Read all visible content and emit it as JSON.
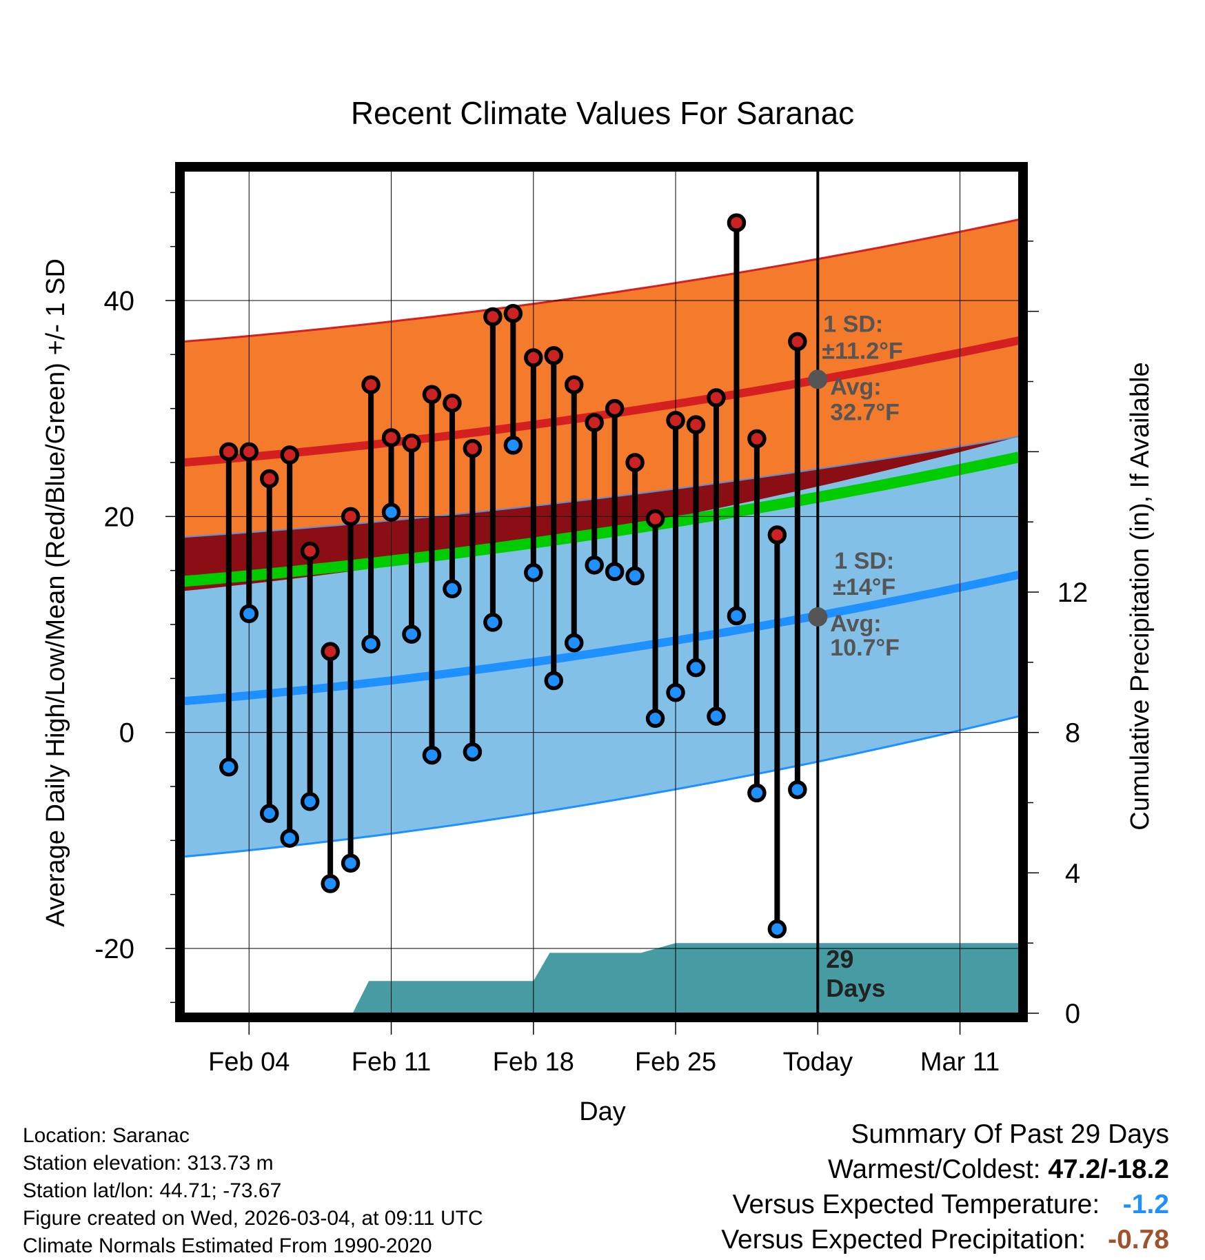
{
  "chart_data": {
    "type": "line",
    "title": "Recent Climate Values For Saranac",
    "xlabel": "Day",
    "ylabel": "Average Daily High/Low/Mean (Red/Blue/Green) +/- 1 SD",
    "ylabel_right": "Cumulative Precipitation (in), If Available",
    "ylim": [
      -26,
      52
    ],
    "y_ticks": [
      -20,
      0,
      20,
      40
    ],
    "y_tick_labels": [
      "-20",
      "0",
      "20",
      "40"
    ],
    "y2lim": [
      0,
      24
    ],
    "y2_ticks": [
      0,
      4,
      8,
      12
    ],
    "y2_tick_labels": [
      "0",
      "4",
      "8",
      "12"
    ],
    "x_range_days": [
      0.3,
      41.4
    ],
    "x_ticks": [
      3.5,
      10.5,
      17.5,
      24.5,
      31.5,
      38.5
    ],
    "x_tick_labels": [
      "Feb 04",
      "Feb 11",
      "Feb 18",
      "Feb 25",
      "Today",
      "Mar 11"
    ],
    "today_day": 31.5,
    "today_line_label": "29 Days",
    "daily_highs": [
      26.0,
      26.0,
      23.5,
      25.7,
      16.8,
      7.5,
      20.0,
      32.2,
      27.3,
      26.8,
      31.3,
      30.5,
      26.3,
      38.5,
      38.8,
      34.7,
      34.9,
      32.2,
      28.7,
      30.0,
      25.0,
      19.8,
      28.9,
      28.5,
      31.0,
      47.2,
      27.2,
      18.3,
      36.2
    ],
    "daily_lows": [
      -3.2,
      11.0,
      -7.5,
      -9.8,
      -6.4,
      -14.0,
      -12.1,
      8.2,
      20.4,
      9.1,
      -2.1,
      13.3,
      -1.8,
      10.2,
      26.6,
      14.8,
      4.8,
      8.3,
      15.5,
      14.9,
      14.5,
      1.3,
      3.7,
      6.0,
      1.5,
      10.8,
      -5.6,
      -18.2,
      -5.3
    ],
    "series": [
      {
        "name": "Normal High",
        "color": "#d42020",
        "start": 25.0,
        "end": 36.3
      },
      {
        "name": "Normal High +1 SD",
        "color": "#d42020",
        "start": 36.2,
        "end": 47.5
      },
      {
        "name": "Normal High -1 SD",
        "color": "#5b8fd9",
        "start": 18.1,
        "end": 27.4
      },
      {
        "name": "Normal Mean",
        "color": "#00cc00",
        "start": 14.0,
        "end": 25.5
      },
      {
        "name": "Normal Low",
        "color": "#1e90ff",
        "start": 2.9,
        "end": 14.6
      },
      {
        "name": "Normal Low -1 SD",
        "color": "#1e90ff",
        "start": -11.5,
        "end": 1.5
      }
    ],
    "precip_steps": [
      {
        "from": 0.3,
        "to": 8.6,
        "value": 0
      },
      {
        "from": 9.4,
        "to": 17.5,
        "value": 0.92
      },
      {
        "from": 18.3,
        "to": 22.8,
        "value": 1.72
      },
      {
        "from": 24.5,
        "to": 41.4,
        "value": 2.0
      }
    ],
    "colors": {
      "high_band": "#f47a2c",
      "low_band": "#82c0e8",
      "overlap_band": "#8b0e14",
      "precip": "#469ca2",
      "high_marker": "#cc2222",
      "low_marker": "#1e90ff",
      "annotation": "#555555"
    },
    "annotations": {
      "high": {
        "sd_label": "1 SD:",
        "sd_value": "±11.2°F",
        "avg_label": "Avg:",
        "avg_value": "32.7°F",
        "avg": 32.7
      },
      "low": {
        "sd_label": "1 SD:",
        "sd_value": "±14°F",
        "avg_label": "Avg:",
        "avg_value": "10.7°F",
        "avg": 10.7
      }
    }
  },
  "info": {
    "location": "Location: Saranac",
    "elevation": "Station elevation: 313.73 m",
    "latlon": "Station lat/lon: 44.71; -73.67",
    "created": "Figure created on Wed, 2026-03-04, at 09:11 UTC",
    "normals": "Climate Normals Estimated From 1990-2020"
  },
  "summary": {
    "title": "Summary Of Past 29 Days",
    "warm_cold_label": "Warmest/Coldest:",
    "warm_cold_value": "47.2/-18.2",
    "temp_label": "Versus Expected Temperature:",
    "temp_value": "-1.2",
    "precip_label": "Versus Expected Precipitation:",
    "precip_value": "-0.78"
  }
}
